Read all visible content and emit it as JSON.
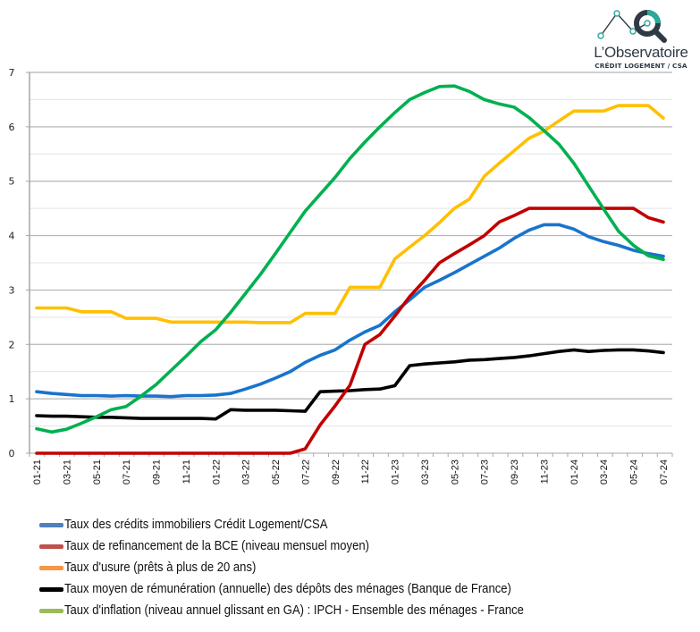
{
  "logo": {
    "title": "L’Observatoire",
    "subtitle": "CRÉDIT LOGEMENT / CSA",
    "colors": {
      "dark": "#2f3a45",
      "teal": "#2aa89a"
    }
  },
  "chart_data": {
    "type": "line",
    "title": "",
    "xlabel": "",
    "ylabel": "",
    "ylim": [
      0,
      7
    ],
    "yticks": [
      0,
      1,
      2,
      3,
      4,
      5,
      6,
      7
    ],
    "grid": true,
    "legend_position": "bottom",
    "x": [
      "01-21",
      "02-21",
      "03-21",
      "04-21",
      "05-21",
      "06-21",
      "07-21",
      "08-21",
      "09-21",
      "10-21",
      "11-21",
      "12-21",
      "01-22",
      "02-22",
      "03-22",
      "04-22",
      "05-22",
      "06-22",
      "07-22",
      "08-22",
      "09-22",
      "10-22",
      "11-22",
      "12-22",
      "01-23",
      "02-23",
      "03-23",
      "04-23",
      "05-23",
      "06-23",
      "07-23",
      "08-23",
      "09-23",
      "10-23",
      "11-23",
      "12-23",
      "01-24",
      "02-24",
      "03-24",
      "04-24",
      "05-24",
      "06-24",
      "07-24"
    ],
    "xtick_labels": [
      "01-21",
      "03-21",
      "05-21",
      "07-21",
      "09-21",
      "11-21",
      "01-22",
      "03-22",
      "05-22",
      "07-22",
      "09-22",
      "11-22",
      "01-23",
      "03-23",
      "05-23",
      "07-23",
      "09-23",
      "11-23",
      "01-24",
      "03-24",
      "05-24",
      "07-24"
    ],
    "series": [
      {
        "name": "Taux des crédits immobiliers Crédit Logement/CSA",
        "color": "#1874cd",
        "legend_color": "#4f81bd",
        "values": [
          1.13,
          1.1,
          1.08,
          1.06,
          1.06,
          1.05,
          1.06,
          1.05,
          1.05,
          1.04,
          1.06,
          1.06,
          1.07,
          1.1,
          1.18,
          1.27,
          1.38,
          1.5,
          1.67,
          1.8,
          1.9,
          2.08,
          2.23,
          2.35,
          2.6,
          2.82,
          3.05,
          3.18,
          3.32,
          3.47,
          3.62,
          3.77,
          3.95,
          4.1,
          4.2,
          4.2,
          4.12,
          3.98,
          3.89,
          3.82,
          3.73,
          3.67,
          3.62
        ]
      },
      {
        "name": "Taux de refinancement de la BCE (niveau mensuel moyen)",
        "color": "#c00000",
        "legend_color": "#c0504d",
        "values": [
          0,
          0,
          0,
          0,
          0,
          0,
          0,
          0,
          0,
          0,
          0,
          0,
          0,
          0,
          0,
          0,
          0,
          0,
          0.08,
          0.52,
          0.87,
          1.25,
          2.0,
          2.18,
          2.52,
          2.88,
          3.18,
          3.5,
          3.67,
          3.83,
          4.0,
          4.25,
          4.37,
          4.5,
          4.5,
          4.5,
          4.5,
          4.5,
          4.5,
          4.5,
          4.5,
          4.33,
          4.25
        ]
      },
      {
        "name": "Taux d'usure (prêts à plus de 20 ans)",
        "color": "#ffc000",
        "legend_color": "#f79646",
        "values": [
          2.67,
          2.67,
          2.67,
          2.6,
          2.6,
          2.6,
          2.48,
          2.48,
          2.48,
          2.41,
          2.41,
          2.41,
          2.41,
          2.41,
          2.41,
          2.4,
          2.4,
          2.4,
          2.57,
          2.57,
          2.57,
          3.05,
          3.05,
          3.05,
          3.57,
          3.79,
          4.0,
          4.24,
          4.5,
          4.67,
          5.09,
          5.33,
          5.56,
          5.79,
          5.92,
          6.11,
          6.29,
          6.29,
          6.29,
          6.39,
          6.39,
          6.39,
          6.16
        ]
      },
      {
        "name": "Taux moyen de rémunération (annuelle) des dépôts des ménages (Banque de France)",
        "color": "#000000",
        "legend_color": "#000000",
        "values": [
          0.69,
          0.68,
          0.68,
          0.67,
          0.66,
          0.66,
          0.65,
          0.64,
          0.64,
          0.64,
          0.64,
          0.64,
          0.63,
          0.8,
          0.79,
          0.79,
          0.79,
          0.78,
          0.77,
          1.13,
          1.14,
          1.15,
          1.17,
          1.18,
          1.24,
          1.61,
          1.64,
          1.66,
          1.68,
          1.71,
          1.72,
          1.74,
          1.76,
          1.79,
          1.83,
          1.87,
          1.9,
          1.87,
          1.89,
          1.9,
          1.9,
          1.88,
          1.85
        ]
      },
      {
        "name": "Taux d'inflation (niveau annuel glissant en GA) : IPCH - Ensemble des ménages - France",
        "color": "#00b050",
        "legend_color": "#9bbb59",
        "values": [
          0.45,
          0.39,
          0.44,
          0.55,
          0.67,
          0.8,
          0.86,
          1.05,
          1.26,
          1.52,
          1.78,
          2.05,
          2.27,
          2.59,
          2.94,
          3.29,
          3.67,
          4.06,
          4.45,
          4.76,
          5.07,
          5.42,
          5.72,
          6.0,
          6.26,
          6.5,
          6.63,
          6.74,
          6.75,
          6.65,
          6.5,
          6.42,
          6.36,
          6.17,
          5.93,
          5.68,
          5.33,
          4.91,
          4.49,
          4.08,
          3.82,
          3.63,
          3.56
        ]
      }
    ]
  }
}
